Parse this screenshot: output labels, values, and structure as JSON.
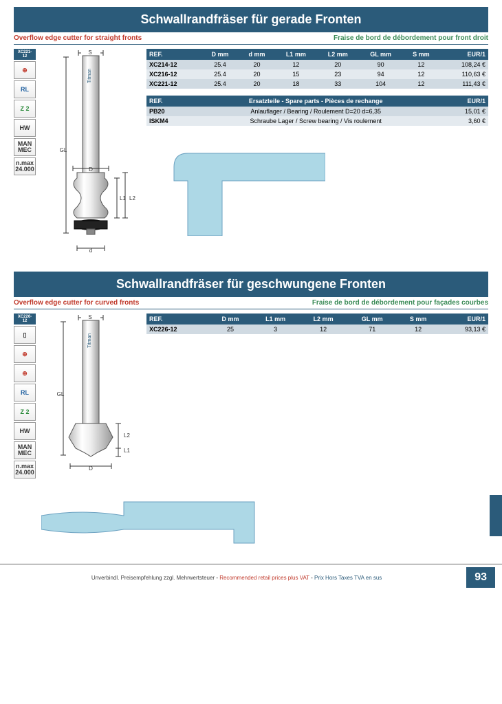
{
  "colors": {
    "header_bg": "#2b5b7a",
    "accent_red": "#c0392b",
    "accent_green": "#3b8b57",
    "shape_fill": "#add8e6",
    "row_even": "#e4eaef",
    "row_odd": "#d0dae2"
  },
  "section1": {
    "title": "Schwallrandfräser für gerade Fronten",
    "subtitle_en": "Overflow edge cutter for straight fronts",
    "subtitle_fr": "Fraise de bord de débordement pour front droit",
    "product_label": "XC221-12",
    "icons": [
      "⊕",
      "RL",
      "Z 2",
      "HW",
      "MAN\nMEC",
      "n.max\n24.000"
    ],
    "table": {
      "headers": [
        "REF.",
        "D mm",
        "d mm",
        "L1 mm",
        "L2 mm",
        "GL mm",
        "S mm",
        "EUR/1"
      ],
      "rows": [
        [
          "XC214-12",
          "25.4",
          "20",
          "12",
          "20",
          "90",
          "12",
          "108,24 €"
        ],
        [
          "XC216-12",
          "25.4",
          "20",
          "15",
          "23",
          "94",
          "12",
          "110,63 €"
        ],
        [
          "XC221-12",
          "25.4",
          "20",
          "18",
          "33",
          "104",
          "12",
          "111,43 €"
        ]
      ]
    },
    "spare": {
      "header_ref": "REF.",
      "header_desc": "Ersatzteile - Spare parts -  Pièces de rechange",
      "header_price": "EUR/1",
      "rows": [
        [
          "PB20",
          "Anlauflager / Bearing / Roulement D=20 d=6,35",
          "15,01 €"
        ],
        [
          "ISKM4",
          "Schraube Lager / Screw bearing / Vis roulement",
          "3,60 €"
        ]
      ]
    }
  },
  "section2": {
    "title": "Schwallrandfräser für geschwungene Fronten",
    "subtitle_en": "Overflow edge cutter for curved fronts",
    "subtitle_fr": "Fraise de bord de débordement pour façades courbes",
    "product_label": "XC226-12",
    "icons": [
      "▯",
      "⊕",
      "⊕",
      "RL",
      "Z 2",
      "HW",
      "MAN\nMEC",
      "n.max\n24.000"
    ],
    "table": {
      "headers": [
        "REF.",
        "D mm",
        "L1 mm",
        "L2 mm",
        "GL mm",
        "S mm",
        "EUR/1"
      ],
      "rows": [
        [
          "XC226-12",
          "25",
          "3",
          "12",
          "71",
          "12",
          "93,13 €"
        ]
      ]
    }
  },
  "footer": {
    "de": "Unverbindl. Preisempfehlung zzgl. Mehrwertsteuer",
    "en": "Recommended retail prices plus VAT",
    "fr": "Prix Hors Taxes TVA en sus",
    "page": "93"
  }
}
